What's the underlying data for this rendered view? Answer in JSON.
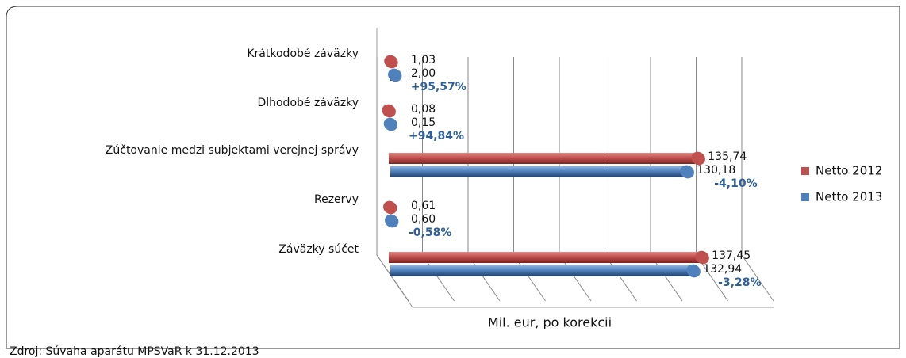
{
  "chart_data": {
    "type": "bar",
    "orientation": "horizontal",
    "categories": [
      "Krátkodobé záväzky",
      "Dlhodobé záväzky",
      "Zúčtovanie medzi subjektami verejnej správy",
      "Rezervy",
      "Záväzky súčet"
    ],
    "series": [
      {
        "name": "Netto 2012",
        "color": "#c0504d",
        "values": [
          1.03,
          0.08,
          135.74,
          0.61,
          137.45
        ],
        "value_labels": [
          "1,03",
          "0,08",
          "135,74",
          "0,61",
          "137,45"
        ]
      },
      {
        "name": "Netto 2013",
        "color": "#4f81bd",
        "values": [
          2.0,
          0.15,
          130.18,
          0.6,
          132.94
        ],
        "value_labels": [
          "2,00",
          "0,15",
          "130,18",
          "0,60",
          "132,94"
        ]
      }
    ],
    "change_labels": [
      "+95,57%",
      "+94,84%",
      "-4,10%",
      "-0,58%",
      "-3,28%"
    ],
    "x_label": "Mil. eur, po korekcii",
    "source": "Zdroj: Súvaha aparátu MPSVaR  k 31.12.2013",
    "xlim": [
      0,
      160
    ],
    "xticks": [
      0,
      20,
      40,
      60,
      80,
      100,
      120,
      140,
      160
    ],
    "grid": true,
    "legend": "right"
  }
}
